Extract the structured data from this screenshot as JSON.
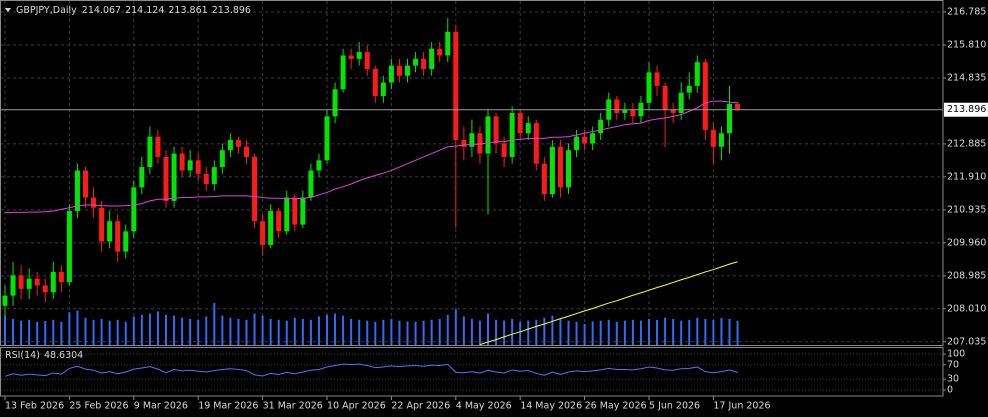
{
  "chart_data": [
    {
      "type": "candlestick",
      "symbol": "GBPJPY,Daily",
      "categories": [
        "13 Feb 2026",
        null,
        null,
        null,
        null,
        null,
        null,
        null,
        "25 Feb 2026",
        null,
        null,
        null,
        null,
        null,
        null,
        null,
        "9 Mar 2026",
        null,
        null,
        null,
        null,
        null,
        null,
        null,
        "19 Mar 2026",
        null,
        null,
        null,
        null,
        null,
        null,
        null,
        "31 Mar 2026",
        null,
        null,
        null,
        null,
        null,
        null,
        null,
        "10 Apr 2026",
        null,
        null,
        null,
        null,
        null,
        null,
        null,
        "22 Apr 2026",
        null,
        null,
        null,
        null,
        null,
        null,
        null,
        "4 May 2026",
        null,
        null,
        null,
        null,
        null,
        null,
        null,
        "14 May 2026",
        null,
        null,
        null,
        null,
        null,
        null,
        null,
        "26 May 2026",
        null,
        null,
        null,
        null,
        null,
        null,
        null,
        "5 Jun 2026",
        null,
        null,
        null,
        null,
        null,
        null,
        null,
        "17 Jun 2026",
        null,
        null,
        null
      ],
      "open": [
        208.1,
        208.4,
        209.0,
        208.6,
        208.9,
        208.7,
        208.5,
        209.1,
        208.8,
        210.9,
        212.1,
        211.3,
        211.0,
        210.0,
        210.6,
        209.7,
        210.3,
        211.6,
        212.2,
        213.1,
        212.5,
        211.2,
        212.6,
        212.1,
        212.4,
        212.0,
        211.7,
        212.2,
        212.7,
        213.0,
        212.8,
        212.5,
        210.6,
        209.9,
        210.9,
        210.3,
        211.3,
        210.5,
        211.3,
        212.1,
        212.4,
        213.7,
        214.5,
        215.5,
        215.4,
        215.6,
        215.1,
        214.3,
        214.7,
        215.2,
        214.9,
        215.2,
        215.4,
        215.1,
        215.7,
        215.5,
        216.2,
        213.0,
        212.8,
        213.2,
        212.6,
        213.7,
        212.9,
        212.5,
        213.8,
        213.2,
        213.5,
        212.3,
        211.4,
        212.8,
        211.6,
        212.7,
        213.1,
        212.9,
        213.2,
        213.6,
        214.2,
        213.8,
        213.9,
        213.7,
        214.1,
        215.0,
        214.6,
        213.9,
        213.8,
        214.4,
        214.6,
        215.3,
        213.3,
        212.8,
        213.2,
        214.067
      ],
      "high": [
        208.7,
        209.4,
        209.3,
        209.2,
        209.1,
        208.9,
        209.4,
        209.3,
        211.1,
        212.3,
        212.2,
        211.6,
        211.2,
        210.9,
        210.8,
        210.5,
        211.8,
        212.5,
        213.4,
        213.3,
        212.7,
        212.8,
        212.8,
        212.7,
        212.6,
        212.2,
        212.4,
        212.9,
        213.2,
        213.1,
        213.0,
        212.6,
        210.8,
        211.1,
        211.0,
        211.5,
        211.4,
        211.5,
        212.3,
        212.6,
        213.9,
        214.7,
        215.7,
        215.7,
        215.9,
        215.8,
        215.2,
        214.9,
        215.4,
        215.4,
        215.4,
        215.6,
        215.6,
        215.9,
        215.9,
        216.6,
        216.4,
        213.4,
        213.6,
        213.4,
        213.9,
        213.8,
        213.1,
        214.0,
        213.9,
        213.7,
        213.6,
        212.5,
        213.0,
        213.0,
        212.9,
        213.3,
        213.3,
        213.4,
        213.8,
        214.4,
        214.3,
        214.1,
        214.1,
        214.3,
        215.3,
        215.2,
        214.7,
        214.1,
        214.7,
        215.0,
        215.5,
        215.4,
        213.5,
        213.4,
        214.6,
        214.124
      ],
      "low": [
        207.8,
        208.1,
        208.3,
        208.3,
        208.4,
        208.2,
        208.3,
        208.5,
        208.7,
        210.7,
        211.0,
        210.7,
        209.7,
        209.8,
        209.4,
        209.5,
        210.1,
        211.4,
        212.0,
        212.3,
        211.0,
        211.0,
        211.9,
        211.9,
        211.8,
        211.5,
        211.5,
        212.0,
        212.5,
        212.6,
        212.3,
        210.4,
        209.6,
        209.8,
        210.1,
        210.2,
        210.3,
        210.4,
        211.2,
        211.9,
        212.3,
        213.5,
        214.4,
        215.1,
        215.2,
        214.9,
        214.1,
        214.1,
        214.5,
        214.7,
        214.7,
        215.0,
        214.9,
        214.9,
        215.3,
        215.3,
        210.4,
        212.4,
        212.5,
        212.3,
        210.8,
        212.6,
        212.2,
        212.3,
        213.0,
        213.0,
        212.1,
        211.2,
        211.3,
        211.3,
        211.4,
        212.5,
        212.7,
        212.7,
        213.0,
        213.4,
        213.6,
        213.6,
        213.5,
        213.5,
        213.9,
        214.3,
        212.8,
        213.5,
        213.6,
        214.2,
        214.4,
        213.0,
        212.3,
        212.4,
        212.6,
        213.861
      ],
      "close": [
        208.4,
        209.0,
        208.6,
        208.9,
        208.7,
        208.5,
        209.1,
        208.8,
        210.9,
        212.1,
        211.3,
        211.0,
        210.0,
        210.6,
        209.7,
        210.3,
        211.6,
        212.2,
        213.1,
        212.5,
        211.2,
        212.6,
        212.1,
        212.4,
        212.0,
        211.7,
        212.2,
        212.7,
        213.0,
        212.8,
        212.5,
        210.6,
        209.9,
        210.9,
        210.3,
        211.3,
        210.5,
        211.3,
        212.1,
        212.4,
        213.7,
        214.5,
        215.5,
        215.4,
        215.6,
        215.1,
        214.3,
        214.7,
        215.2,
        214.9,
        215.2,
        215.4,
        215.1,
        215.7,
        215.5,
        216.2,
        213.0,
        212.8,
        213.2,
        212.6,
        213.7,
        212.9,
        212.5,
        213.8,
        213.2,
        213.5,
        212.3,
        211.4,
        212.8,
        211.6,
        212.7,
        213.1,
        212.9,
        213.2,
        213.6,
        214.2,
        213.8,
        213.9,
        213.7,
        214.1,
        215.0,
        214.6,
        213.9,
        213.8,
        214.4,
        214.6,
        215.3,
        213.3,
        212.8,
        213.2,
        214.07,
        213.896
      ],
      "up_color": "#00e600",
      "down_color": "#ff1a1a",
      "ylim": [
        206.94,
        217.11
      ],
      "yticks": [
        216.785,
        {
          "value": 215.81,
          "label": "215.810"
        },
        214.835,
        212.885,
        {
          "value": 211.91,
          "label": "211.910"
        },
        210.935,
        {
          "value": 209.96,
          "label": "209.960"
        },
        208.985,
        {
          "value": 208.01,
          "label": "208.010"
        },
        207.035
      ],
      "grid": true,
      "series": [
        {
          "color": "#e040e0",
          "values": [
            210.85,
            210.86,
            210.86,
            210.87,
            210.87,
            210.88,
            210.9,
            210.95,
            211.0,
            211.05,
            211.08,
            211.08,
            211.06,
            211.05,
            211.05,
            211.06,
            211.08,
            211.12,
            211.2,
            211.25,
            211.25,
            211.28,
            211.3,
            211.3,
            211.32,
            211.32,
            211.33,
            211.35,
            211.35,
            211.35,
            211.35,
            211.33,
            211.3,
            211.28,
            211.28,
            211.27,
            211.26,
            211.28,
            211.3,
            211.38,
            211.45,
            211.55,
            211.62,
            211.7,
            211.8,
            211.88,
            211.95,
            212.02,
            212.1,
            212.2,
            212.3,
            212.4,
            212.5,
            212.6,
            212.7,
            212.8,
            212.82,
            212.85,
            212.87,
            212.88,
            212.92,
            212.95,
            212.95,
            213.0,
            213.02,
            213.05,
            213.05,
            213.05,
            213.08,
            213.08,
            213.1,
            213.15,
            213.2,
            213.25,
            213.3,
            213.35,
            213.4,
            213.45,
            213.48,
            213.5,
            213.58,
            213.62,
            213.65,
            213.7,
            213.75,
            213.85,
            213.95,
            214.1,
            214.15,
            214.15,
            214.12,
            214.1
          ]
        },
        {
          "color": "#ffff33",
          "values": [
            null,
            null,
            null,
            null,
            null,
            null,
            null,
            null,
            null,
            null,
            null,
            null,
            null,
            null,
            null,
            null,
            null,
            null,
            null,
            null,
            null,
            null,
            null,
            null,
            null,
            null,
            null,
            null,
            null,
            null,
            null,
            null,
            null,
            null,
            null,
            null,
            null,
            null,
            null,
            null,
            null,
            null,
            null,
            null,
            null,
            null,
            null,
            null,
            null,
            null,
            null,
            null,
            null,
            null,
            null,
            null,
            null,
            null,
            null,
            206.95,
            207.03,
            207.1,
            207.18,
            207.26,
            207.33,
            207.41,
            207.49,
            207.56,
            207.64,
            207.72,
            207.79,
            207.87,
            207.95,
            208.02,
            208.1,
            208.18,
            208.25,
            208.33,
            208.41,
            208.48,
            208.56,
            208.64,
            208.71,
            208.79,
            208.87,
            208.94,
            209.02,
            209.1,
            209.17,
            209.25,
            209.33,
            209.4
          ]
        }
      ],
      "volume": {
        "color": "#2f6bff",
        "values": [
          70,
          62,
          58,
          60,
          55,
          57,
          60,
          55,
          78,
          82,
          65,
          60,
          62,
          58,
          60,
          55,
          68,
          72,
          75,
          80,
          72,
          70,
          65,
          62,
          60,
          68,
          100,
          70,
          65,
          62,
          60,
          75,
          70,
          62,
          60,
          58,
          65,
          62,
          60,
          68,
          72,
          75,
          70,
          62,
          60,
          58,
          55,
          60,
          62,
          58,
          56,
          55,
          58,
          60,
          62,
          72,
          85,
          68,
          62,
          58,
          75,
          60,
          58,
          62,
          55,
          58,
          60,
          65,
          70,
          62,
          58,
          55,
          50,
          56,
          58,
          60,
          55,
          58,
          60,
          58,
          62,
          60,
          65,
          62,
          58,
          60,
          65,
          62,
          60,
          64,
          62,
          58
        ]
      }
    },
    {
      "type": "line",
      "title": "RSI(14)",
      "ylim": [
        0,
        100
      ],
      "yticks": [
        100,
        70,
        30,
        0
      ],
      "series": [
        {
          "color": "#4a78ff",
          "values": [
            38,
            45,
            41,
            44,
            42,
            40,
            47,
            44,
            60,
            66,
            58,
            55,
            47,
            51,
            45,
            50,
            58,
            61,
            65,
            58,
            48,
            57,
            53,
            55,
            52,
            50,
            54,
            57,
            59,
            57,
            54,
            42,
            39,
            46,
            43,
            49,
            45,
            50,
            55,
            57,
            64,
            68,
            72,
            71,
            72,
            68,
            62,
            64,
            67,
            65,
            67,
            68,
            66,
            69,
            68,
            71,
            49,
            48,
            51,
            47,
            55,
            50,
            47,
            56,
            52,
            54,
            46,
            41,
            50,
            43,
            50,
            53,
            51,
            53,
            56,
            60,
            57,
            57,
            56,
            59,
            64,
            61,
            56,
            55,
            59,
            60,
            64,
            51,
            48,
            51,
            56,
            48.6304
          ]
        }
      ]
    }
  ]
}
